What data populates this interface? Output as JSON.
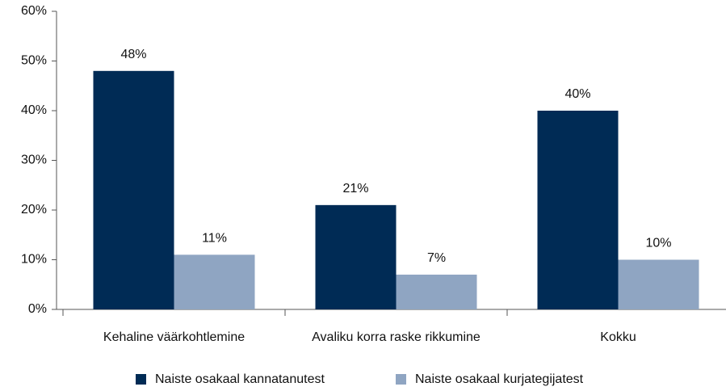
{
  "chart_data": {
    "type": "bar",
    "categories": [
      "Kehaline väärkohtlemine",
      "Avaliku korra raske rikkumine",
      "Kokku"
    ],
    "series": [
      {
        "name": "Naiste osakaal kannatanutest",
        "color": "#002b55",
        "values": [
          48,
          21,
          40
        ],
        "value_labels": [
          "48%",
          "21%",
          "40%"
        ]
      },
      {
        "name": "Naiste osakaal kurjategijatest",
        "color": "#8fa5c2",
        "values": [
          11,
          7,
          10
        ],
        "value_labels": [
          "11%",
          "7%",
          "10%"
        ]
      }
    ],
    "ylim": [
      0,
      60
    ],
    "yticks": [
      {
        "value": 0,
        "label": "0%"
      },
      {
        "value": 10,
        "label": "10%"
      },
      {
        "value": 20,
        "label": "20%"
      },
      {
        "value": 30,
        "label": "30%"
      },
      {
        "value": 40,
        "label": "40%"
      },
      {
        "value": 50,
        "label": "50%"
      },
      {
        "value": 60,
        "label": "60%"
      }
    ],
    "grid": false,
    "legend": "bottom"
  }
}
